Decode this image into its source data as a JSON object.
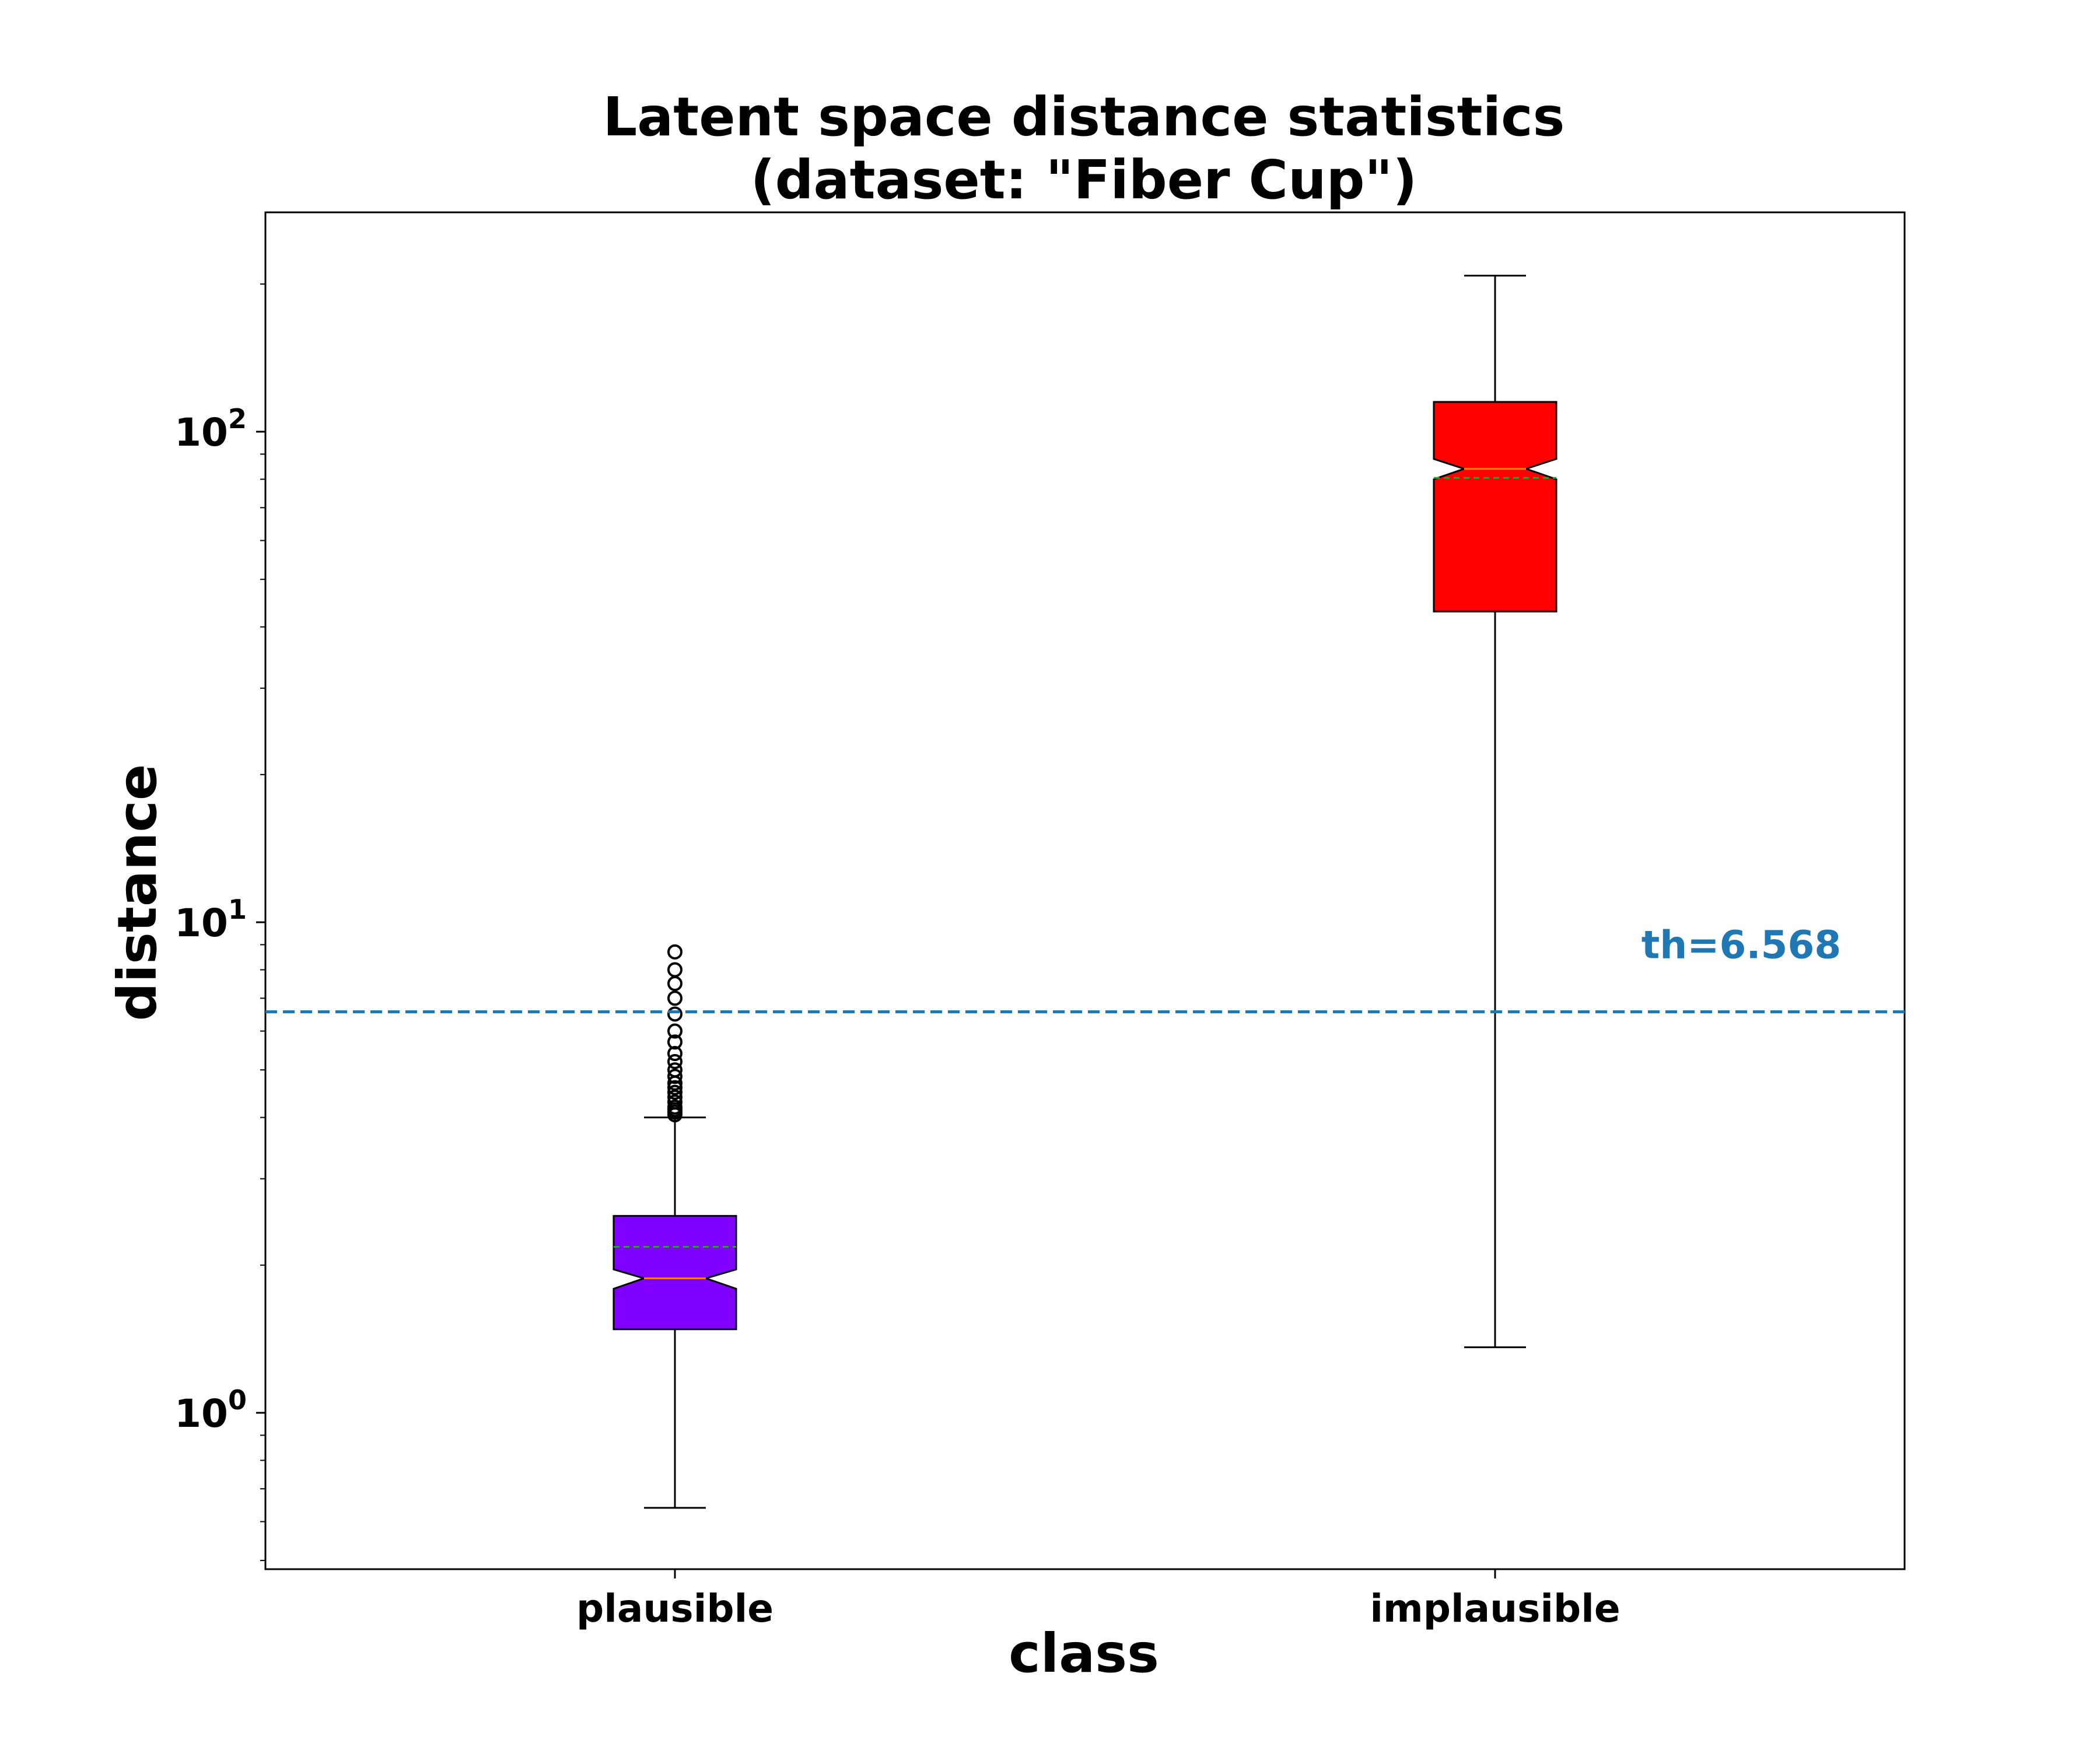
{
  "chart_data": {
    "type": "boxplot",
    "title_lines": [
      "Latent space distance statistics",
      "(dataset: \"Fiber Cup\")"
    ],
    "xlabel": "class",
    "ylabel": "distance",
    "yscale": "log",
    "ylim": [
      0.48,
      280
    ],
    "y_ticks": [
      {
        "value": 1,
        "exp": "0"
      },
      {
        "value": 10,
        "exp": "1"
      },
      {
        "value": 100,
        "exp": "2"
      }
    ],
    "y_tick_base": "10",
    "notched": true,
    "grid": false,
    "categories": [
      "plausible",
      "implausible"
    ],
    "boxes": [
      {
        "name": "plausible",
        "color": "#7f00ff",
        "whisker_low": 0.64,
        "q1": 1.48,
        "median": 1.88,
        "notch_low": 1.79,
        "notch_high": 1.96,
        "mean": 2.18,
        "q3": 2.52,
        "whisker_high": 4.0,
        "outliers": [
          4.05,
          4.1,
          4.15,
          4.2,
          4.3,
          4.4,
          4.5,
          4.6,
          4.7,
          4.85,
          5.0,
          5.2,
          5.4,
          5.7,
          6.0,
          6.5,
          7.0,
          7.5,
          8.0,
          8.7
        ]
      },
      {
        "name": "implausible",
        "color": "#ff0000",
        "whisker_low": 1.36,
        "q1": 43,
        "median": 84,
        "notch_low": 80,
        "notch_high": 88,
        "mean": 80.5,
        "q3": 115,
        "whisker_high": 208,
        "outliers": []
      }
    ],
    "threshold": {
      "value": 6.568,
      "label": "th=6.568",
      "color": "#1f77b4"
    },
    "median_color": "#ff7f0e",
    "mean_line_color": "#2ca02c"
  }
}
